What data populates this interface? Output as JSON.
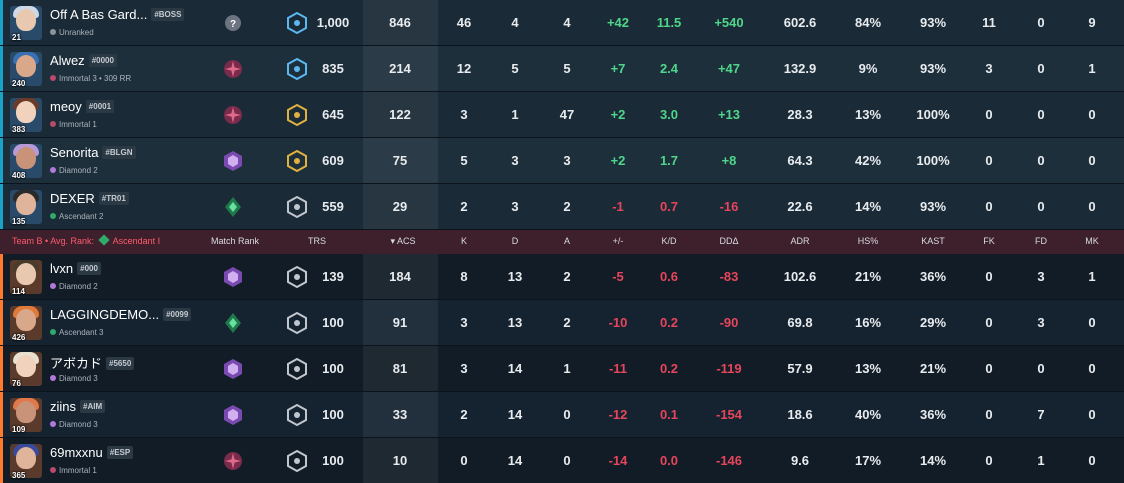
{
  "header": {
    "team_label": "Team B",
    "avg_rank_label": "Avg. Rank:",
    "avg_rank_value": "Ascendant I",
    "columns": [
      "Match Rank",
      "TRS",
      "ACS",
      "K",
      "D",
      "A",
      "+/-",
      "K/D",
      "DDΔ",
      "ADR",
      "HS%",
      "KAST",
      "FK",
      "FD",
      "MK"
    ],
    "sort_indicator": "▾"
  },
  "colors": {
    "team_a_stripe": "#1aa3c9",
    "team_b_stripe": "#ff7a2a",
    "positive": "#4fd68a",
    "negative": "#e6455c",
    "header_bg": "#3e1f2c"
  },
  "team_a": [
    {
      "level": "21",
      "name": "Off A Bas Gard...",
      "tag": "#BOSS",
      "rank": "Unranked",
      "rank_color": "#8a949c",
      "match_rank_icon": "unranked-icon",
      "trs_icon": "radiant-tier-icon",
      "trs": "1,000",
      "acs": "846",
      "k": "46",
      "d": "4",
      "a": "4",
      "pm": "+42",
      "kd": "11.5",
      "dd": "+540",
      "adr": "602.6",
      "hs": "84%",
      "kast": "93%",
      "fk": "11",
      "fd": "0",
      "mk": "9"
    },
    {
      "level": "240",
      "name": "Alwez",
      "tag": "#0000",
      "rank": "Immortal 3 • 309 RR",
      "rank_color": "#b84a6a",
      "match_rank_icon": "immortal-icon",
      "trs_icon": "radiant-tier-icon",
      "trs": "835",
      "acs": "214",
      "k": "12",
      "d": "5",
      "a": "5",
      "pm": "+7",
      "kd": "2.4",
      "dd": "+47",
      "adr": "132.9",
      "hs": "9%",
      "kast": "93%",
      "fk": "3",
      "fd": "0",
      "mk": "1"
    },
    {
      "level": "383",
      "name": "meoy",
      "tag": "#0001",
      "rank": "Immortal 1",
      "rank_color": "#b84a6a",
      "match_rank_icon": "immortal-icon",
      "trs_icon": "gold-tier-icon",
      "trs": "645",
      "acs": "122",
      "k": "3",
      "d": "1",
      "a": "47",
      "pm": "+2",
      "kd": "3.0",
      "dd": "+13",
      "adr": "28.3",
      "hs": "13%",
      "kast": "100%",
      "fk": "0",
      "fd": "0",
      "mk": "0"
    },
    {
      "level": "408",
      "name": "Senorita",
      "tag": "#BLGN",
      "rank": "Diamond 2",
      "rank_color": "#b07ad9",
      "match_rank_icon": "diamond-icon",
      "trs_icon": "gold-tier-icon",
      "trs": "609",
      "acs": "75",
      "k": "5",
      "d": "3",
      "a": "3",
      "pm": "+2",
      "kd": "1.7",
      "dd": "+8",
      "adr": "64.3",
      "hs": "42%",
      "kast": "100%",
      "fk": "0",
      "fd": "0",
      "mk": "0"
    },
    {
      "level": "135",
      "name": "DEXER",
      "tag": "#TR01",
      "rank": "Ascendant 2",
      "rank_color": "#2faa6a",
      "match_rank_icon": "ascendant-icon",
      "trs_icon": "silver-tier-icon",
      "trs": "559",
      "acs": "29",
      "k": "2",
      "d": "3",
      "a": "2",
      "pm": "-1",
      "kd": "0.7",
      "dd": "-16",
      "adr": "22.6",
      "hs": "14%",
      "kast": "93%",
      "fk": "0",
      "fd": "0",
      "mk": "0"
    }
  ],
  "team_b": [
    {
      "level": "114",
      "name": "lvxn",
      "tag": "#000",
      "rank": "Diamond 2",
      "rank_color": "#b07ad9",
      "match_rank_icon": "diamond-icon",
      "trs_icon": "silver-tier-icon",
      "trs": "139",
      "acs": "184",
      "k": "8",
      "d": "13",
      "a": "2",
      "pm": "-5",
      "kd": "0.6",
      "dd": "-83",
      "adr": "102.6",
      "hs": "21%",
      "kast": "36%",
      "fk": "0",
      "fd": "3",
      "mk": "1"
    },
    {
      "level": "426",
      "name": "LAGGINGDEMO...",
      "tag": "#0099",
      "rank": "Ascendant 3",
      "rank_color": "#2faa6a",
      "match_rank_icon": "ascendant-icon",
      "trs_icon": "silver-tier-icon",
      "trs": "100",
      "acs": "91",
      "k": "3",
      "d": "13",
      "a": "2",
      "pm": "-10",
      "kd": "0.2",
      "dd": "-90",
      "adr": "69.8",
      "hs": "16%",
      "kast": "29%",
      "fk": "0",
      "fd": "3",
      "mk": "0"
    },
    {
      "level": "76",
      "name": "アボカド",
      "tag": "#5650",
      "rank": "Diamond 3",
      "rank_color": "#b07ad9",
      "match_rank_icon": "diamond-icon",
      "trs_icon": "silver-tier-icon",
      "trs": "100",
      "acs": "81",
      "k": "3",
      "d": "14",
      "a": "1",
      "pm": "-11",
      "kd": "0.2",
      "dd": "-119",
      "adr": "57.9",
      "hs": "13%",
      "kast": "21%",
      "fk": "0",
      "fd": "0",
      "mk": "0"
    },
    {
      "level": "109",
      "name": "ziins",
      "tag": "#AIM",
      "rank": "Diamond 3",
      "rank_color": "#b07ad9",
      "match_rank_icon": "diamond-icon",
      "trs_icon": "silver-tier-icon",
      "trs": "100",
      "acs": "33",
      "k": "2",
      "d": "14",
      "a": "0",
      "pm": "-12",
      "kd": "0.1",
      "dd": "-154",
      "adr": "18.6",
      "hs": "40%",
      "kast": "36%",
      "fk": "0",
      "fd": "7",
      "mk": "0"
    },
    {
      "level": "365",
      "name": "69mxxnu",
      "tag": "#ESP",
      "rank": "Immortal 1",
      "rank_color": "#b84a6a",
      "match_rank_icon": "immortal-icon",
      "trs_icon": "silver-tier-icon",
      "trs": "100",
      "acs": "10",
      "k": "0",
      "d": "14",
      "a": "0",
      "pm": "-14",
      "kd": "0.0",
      "dd": "-146",
      "adr": "9.6",
      "hs": "17%",
      "kast": "14%",
      "fk": "0",
      "fd": "1",
      "mk": "0"
    }
  ]
}
